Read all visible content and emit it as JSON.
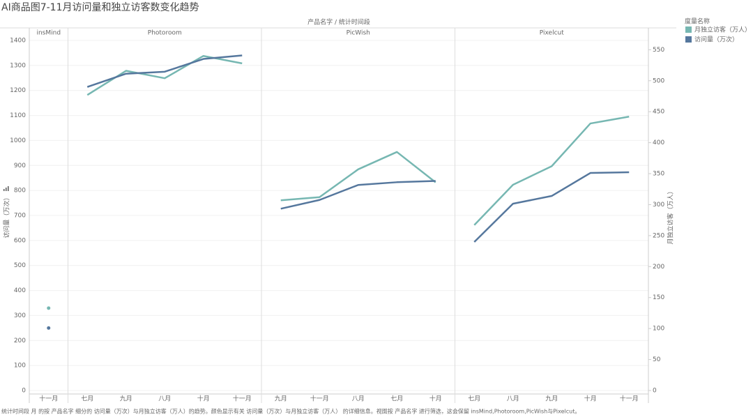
{
  "chart_data": {
    "type": "line",
    "title": "AI商品图7-11月访问量和独立访客数变化趋势",
    "header": "产品名字  /  统计时间段",
    "y_label": "访问量（万次）",
    "y2_label": "月独立访客（万人）",
    "legend_title": "度量名称",
    "legend_position": "right",
    "caption": "统计时间段 月 的按 产品名字 细分的 访问量（万次）与月独立访客（万人）的趋势。颜色显示有关 访问量（万次）与月独立访客（万人） 的详细信息。视图按 产品名字 进行筛选，这会保留 insMind,Photoroom,PicWish与Pixelcut。",
    "grid": true,
    "ylim": [
      0,
      1400
    ],
    "yticks": [
      0,
      100,
      200,
      300,
      400,
      500,
      600,
      700,
      800,
      900,
      1000,
      1100,
      1200,
      1300,
      1400
    ],
    "y2lim": [
      0,
      565
    ],
    "y2ticks": [
      0,
      50,
      100,
      150,
      200,
      250,
      300,
      350,
      400,
      450,
      500,
      550
    ],
    "panels": [
      {
        "name": "insMind",
        "categories": [
          "十一月"
        ]
      },
      {
        "name": "Photoroom",
        "categories": [
          "七月",
          "九月",
          "八月",
          "十月",
          "十一月"
        ]
      },
      {
        "name": "PicWish",
        "categories": [
          "九月",
          "十一月",
          "八月",
          "七月",
          "十月"
        ]
      },
      {
        "name": "Pixelcut",
        "categories": [
          "七月",
          "八月",
          "九月",
          "十月",
          "十一月"
        ]
      }
    ],
    "series": [
      {
        "name": "月独立访客（万人）",
        "color": "#76b7b2",
        "axis": "y2",
        "values": [
          [
            133
          ],
          [
            477,
            516,
            504,
            540,
            528
          ],
          [
            307,
            312,
            357,
            385,
            336
          ],
          [
            267,
            332,
            362,
            431,
            442
          ]
        ]
      },
      {
        "name": "访问量（万次）",
        "color": "#55779d",
        "values": [
          [
            250
          ],
          [
            1214,
            1267,
            1275,
            1326,
            1340
          ],
          [
            727,
            762,
            822,
            833,
            838
          ],
          [
            594,
            747,
            778,
            870,
            873
          ]
        ]
      }
    ]
  }
}
